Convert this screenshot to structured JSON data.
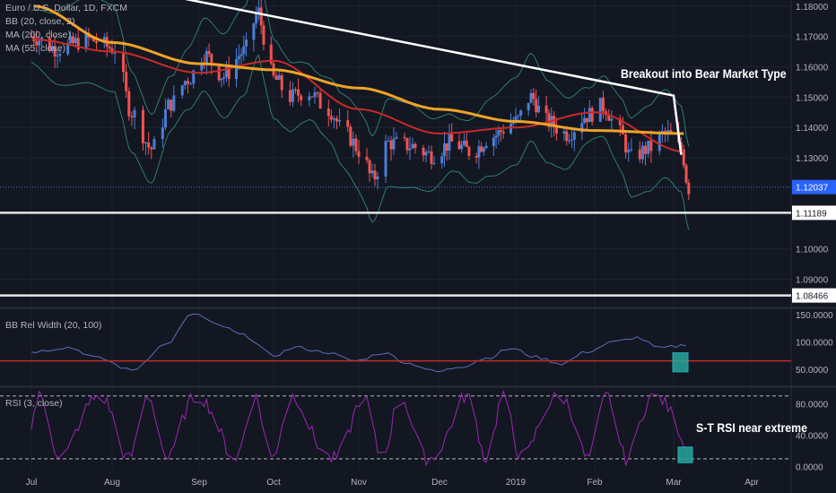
{
  "legend": {
    "symbol": "Euro / U.S. Dollar, 1D, FXCM",
    "bb": "BB (20, close, 2)",
    "ma200": "MA (200, close)",
    "ma55": "MA (55, close)"
  },
  "annotations": {
    "breakout": "Breakout into Bear Market Type",
    "rsi_note": "S-T RSI near extreme"
  },
  "colors": {
    "background": "#131722",
    "grid": "#1e2230",
    "candle_up": "#4a7ed6",
    "candle_down": "#ef5350",
    "bb_band": "#2e7d6b",
    "ma200": "#f0a326",
    "ma55": "#c92a2a",
    "rsi": "#9c27b0",
    "bbw": "#5b6fb7",
    "support": "#e6e6e6",
    "trend": "#ffffff",
    "marker": "#26c6da"
  },
  "chart_data": [
    {
      "type": "candlestick",
      "pane": "price",
      "x_ticks": [
        "Jul",
        "Aug",
        "Sep",
        "Oct",
        "Nov",
        "Dec",
        "2019",
        "Feb",
        "Mar",
        "Apr"
      ],
      "y_ticks": [
        "1.18000",
        "1.17000",
        "1.16000",
        "1.15000",
        "1.14000",
        "1.13000",
        "1.10000",
        "1.09000"
      ],
      "ylim": [
        1.081,
        1.182
      ],
      "last_price": "1.12037",
      "last_price_value": 1.12037,
      "support_levels": [
        {
          "label": "1.11189",
          "value": 1.11189
        },
        {
          "label": "1.08466",
          "value": 1.08466
        }
      ],
      "trend_line": {
        "from": [
          "Aug 18",
          1.184
        ],
        "to": [
          "Mar 1",
          1.1505
        ],
        "drop_to": [
          "Mar 4",
          1.131
        ]
      },
      "series": [
        {
          "name": "MA (200, close)",
          "x": [
            "Jul 2",
            "Aug 1",
            "Sep 1",
            "Oct 1",
            "Nov 1",
            "Dec 1",
            "Jan 1",
            "Feb 1",
            "Mar 5"
          ],
          "values": [
            1.18,
            1.168,
            1.161,
            1.159,
            1.153,
            1.146,
            1.142,
            1.139,
            1.138
          ]
        },
        {
          "name": "MA (55, close)",
          "x": [
            "Jul 2",
            "Aug 1",
            "Sep 1",
            "Oct 1",
            "Nov 1",
            "Dec 1",
            "Jan 1",
            "Feb 1",
            "Mar 5"
          ],
          "values": [
            1.169,
            1.165,
            1.158,
            1.162,
            1.146,
            1.138,
            1.14,
            1.145,
            1.132
          ]
        }
      ]
    },
    {
      "type": "line",
      "pane": "bb_rel_width",
      "title": "BB Rel Width (20, 100)",
      "y_ticks": [
        "150.0000",
        "100.0000",
        "50.0000"
      ],
      "ylim": [
        20,
        160
      ],
      "threshold": 65
    },
    {
      "type": "line",
      "pane": "rsi",
      "title": "RSI (3, close)",
      "y_ticks": [
        "80.0000",
        "40.0000",
        "0.0000"
      ],
      "ylim": [
        -5,
        100
      ],
      "levels": [
        90,
        10
      ]
    }
  ]
}
